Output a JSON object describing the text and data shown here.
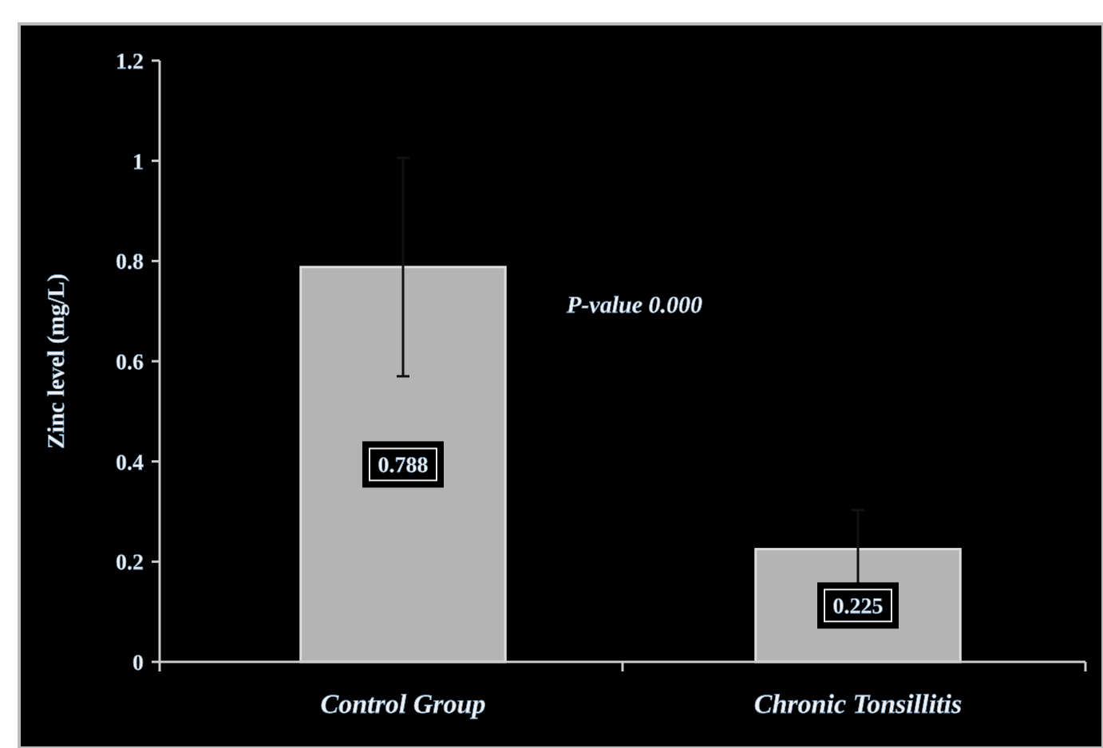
{
  "chart_data": {
    "type": "bar",
    "ylabel": "Zinc level (mg/L)",
    "categories": [
      "Control Group",
      "Chronic Tonsillitis"
    ],
    "values": [
      0.788,
      0.225
    ],
    "errors": [
      0.218,
      0.078
    ],
    "color": "#b4b4b4",
    "ylim": [
      0,
      1.2
    ],
    "yticks": [
      0,
      0.2,
      0.4,
      0.6,
      0.8,
      1,
      1.2
    ],
    "data_labels": true,
    "annotations": [
      "P-value 0.000"
    ]
  }
}
